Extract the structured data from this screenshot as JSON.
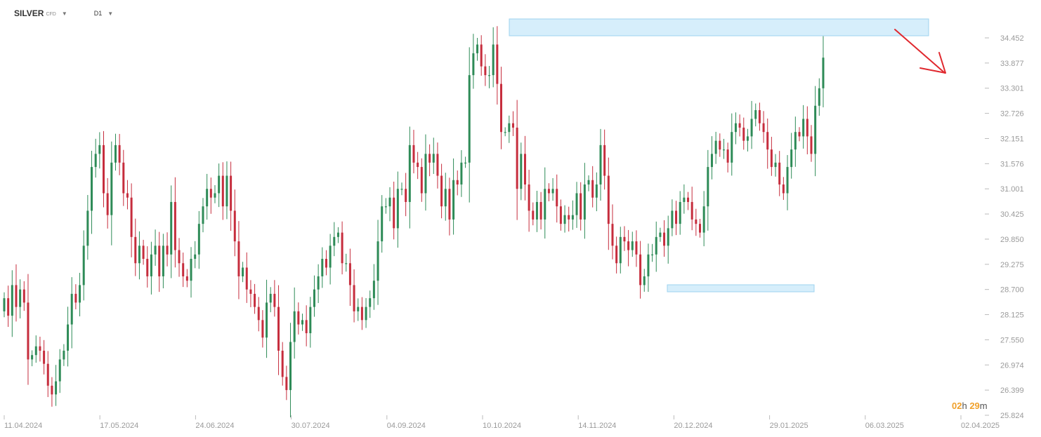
{
  "toolbar": {
    "symbol": "SILVER",
    "symbol_sub": "CFD",
    "symbol_caret": "▼",
    "timeframe": "D1",
    "timeframe_caret": "▼"
  },
  "timer": {
    "hours": "02",
    "h_unit": "h",
    "minutes": "29",
    "m_unit": "m"
  },
  "colors": {
    "up": "#2e8b57",
    "down": "#c62d3d",
    "zone_fill": "#d6eefb",
    "zone_stroke": "#9ed3ef",
    "arrow": "#e0282e"
  },
  "chart_data": {
    "type": "candlestick",
    "symbol": "SILVER",
    "timeframe": "D1",
    "price_axis": {
      "ticks": [
        "34.452",
        "33.877",
        "33.301",
        "32.726",
        "32.151",
        "31.576",
        "31.001",
        "30.425",
        "29.850",
        "29.275",
        "28.700",
        "28.125",
        "27.550",
        "26.974",
        "26.399",
        "25.824"
      ],
      "range": [
        25.824,
        34.452
      ]
    },
    "time_axis": {
      "ticks": [
        "11.04.2024",
        "17.05.2024",
        "24.06.2024",
        "30.07.2024",
        "04.09.2024",
        "10.10.2024",
        "14.11.2024",
        "20.12.2024",
        "29.01.2025",
        "06.03.2025",
        "02.04.2025"
      ]
    },
    "closes": [
      28.5,
      28.1,
      28.8,
      28.3,
      28.7,
      28.4,
      27.1,
      27.2,
      27.4,
      27.3,
      27.0,
      26.5,
      26.3,
      26.6,
      27.1,
      27.3,
      27.9,
      28.6,
      28.4,
      28.8,
      29.7,
      30.5,
      31.5,
      31.8,
      32.0,
      30.9,
      30.4,
      31.6,
      32.0,
      31.6,
      30.9,
      30.8,
      29.9,
      29.3,
      29.7,
      29.4,
      29.0,
      29.5,
      29.7,
      29.0,
      29.7,
      29.5,
      30.7,
      29.6,
      29.3,
      29.0,
      28.9,
      29.4,
      29.5,
      30.2,
      30.6,
      31.0,
      30.8,
      30.9,
      31.3,
      30.6,
      31.3,
      30.5,
      29.8,
      29.0,
      29.2,
      28.7,
      28.6,
      28.3,
      28.0,
      27.6,
      28.4,
      28.6,
      28.3,
      27.3,
      26.7,
      26.4,
      27.5,
      28.2,
      27.9,
      28.0,
      27.7,
      28.3,
      28.7,
      29.0,
      29.4,
      29.2,
      29.7,
      29.9,
      30.0,
      29.3,
      29.3,
      28.8,
      28.2,
      28.3,
      28.0,
      28.3,
      28.5,
      28.9,
      29.8,
      30.6,
      30.6,
      30.8,
      30.1,
      31.0,
      31.0,
      30.7,
      32.0,
      31.6,
      31.5,
      30.9,
      31.8,
      31.6,
      31.8,
      31.3,
      30.6,
      31.0,
      30.3,
      31.2,
      31.1,
      31.6,
      31.6,
      33.6,
      34.1,
      34.3,
      33.8,
      33.6,
      33.6,
      34.3,
      33.4,
      32.3,
      32.3,
      32.5,
      32.4,
      31.0,
      31.8,
      31.1,
      30.5,
      30.3,
      30.7,
      30.3,
      31.0,
      30.9,
      31.0,
      30.6,
      30.2,
      30.4,
      30.3,
      30.4,
      30.9,
      30.3,
      31.1,
      31.2,
      30.8,
      31.1,
      32.0,
      31.3,
      30.2,
      29.7,
      29.3,
      29.9,
      29.8,
      29.6,
      29.8,
      29.5,
      28.8,
      29.0,
      29.5,
      29.5,
      29.9,
      30.0,
      29.7,
      30.1,
      30.5,
      30.2,
      30.7,
      30.8,
      30.7,
      30.3,
      30.2,
      30.0,
      30.6,
      31.5,
      31.8,
      32.1,
      31.9,
      31.9,
      31.6,
      32.3,
      32.5,
      32.4,
      32.1,
      32.2,
      32.6,
      32.8,
      32.5,
      32.3,
      31.9,
      31.5,
      31.6,
      31.1,
      30.9,
      31.5,
      31.9,
      32.3,
      32.2,
      32.6,
      32.2,
      31.8,
      32.9,
      33.3,
      34.0
    ]
  }
}
